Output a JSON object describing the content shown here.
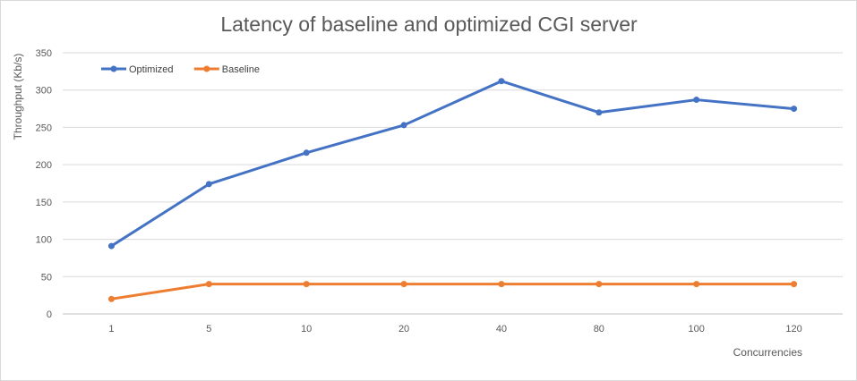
{
  "chart_data": {
    "type": "line",
    "title": "Latency of baseline and optimized CGI server",
    "xlabel": "Concurrencies",
    "ylabel": "Throughput (Kb/s)",
    "categories": [
      "1",
      "5",
      "10",
      "20",
      "40",
      "80",
      "100",
      "120"
    ],
    "ylim": [
      0,
      350
    ],
    "yticks": [
      0,
      50,
      100,
      150,
      200,
      250,
      300,
      350
    ],
    "grid": true,
    "legend_position": "top-left",
    "series": [
      {
        "name": "Optimized",
        "color": "#4472C4",
        "values": [
          91,
          174,
          216,
          253,
          312,
          270,
          287,
          275
        ]
      },
      {
        "name": "Baseline",
        "color": "#ED7D31",
        "values": [
          20,
          40,
          40,
          40,
          40,
          40,
          40,
          40
        ]
      }
    ]
  }
}
